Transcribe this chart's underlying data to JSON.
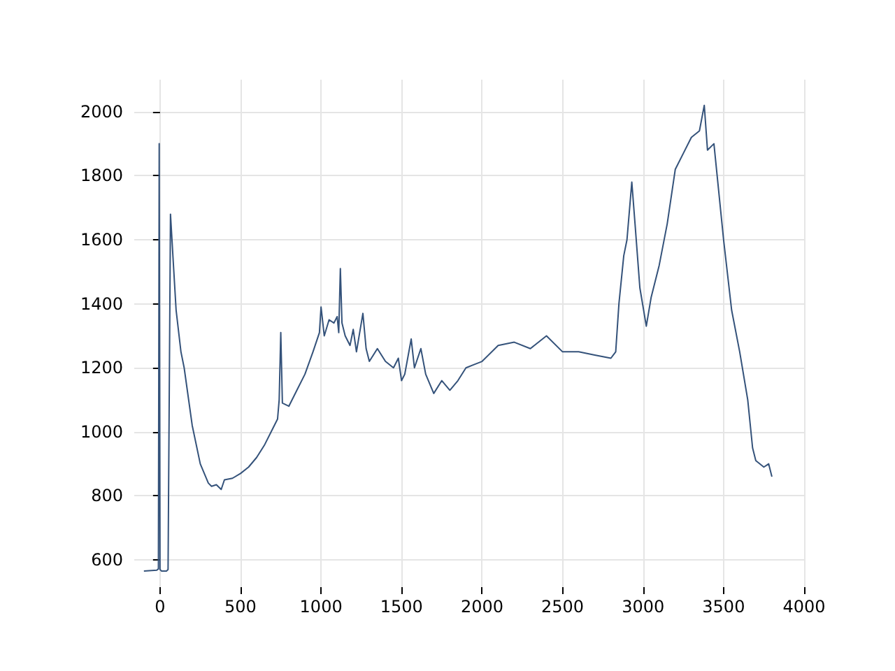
{
  "chart_data": {
    "type": "line",
    "color": "#34527a",
    "grid": true,
    "marker": "none",
    "line_style": "solid",
    "xlim": [
      -160,
      4000
    ],
    "xticks": [
      0,
      500,
      1000,
      1500,
      2000,
      2500,
      3000,
      3500,
      4000
    ],
    "ylim": [
      515,
      2100
    ],
    "yticks": [
      600,
      800,
      1000,
      1200,
      1400,
      1600,
      1800,
      2000
    ],
    "x": [
      -100,
      -20,
      -10,
      -5,
      0,
      10,
      40,
      50,
      65,
      80,
      100,
      130,
      150,
      200,
      250,
      300,
      320,
      350,
      380,
      400,
      450,
      500,
      550,
      600,
      650,
      700,
      730,
      740,
      750,
      760,
      800,
      850,
      900,
      950,
      990,
      1000,
      1020,
      1050,
      1080,
      1100,
      1110,
      1120,
      1130,
      1150,
      1180,
      1200,
      1220,
      1260,
      1280,
      1300,
      1350,
      1400,
      1450,
      1480,
      1500,
      1520,
      1560,
      1580,
      1620,
      1650,
      1700,
      1750,
      1800,
      1850,
      1900,
      1950,
      2000,
      2100,
      2200,
      2300,
      2400,
      2500,
      2600,
      2700,
      2800,
      2830,
      2850,
      2880,
      2900,
      2930,
      2950,
      2980,
      3020,
      3050,
      3100,
      3150,
      3200,
      3250,
      3300,
      3350,
      3380,
      3400,
      3440,
      3460,
      3500,
      3550,
      3600,
      3650,
      3680,
      3700,
      3750,
      3780,
      3800
    ],
    "values": [
      565,
      568,
      572,
      1900,
      570,
      565,
      565,
      570,
      1680,
      1550,
      1380,
      1250,
      1200,
      1020,
      900,
      840,
      830,
      835,
      820,
      850,
      855,
      870,
      890,
      920,
      960,
      1010,
      1040,
      1100,
      1310,
      1090,
      1080,
      1130,
      1180,
      1250,
      1310,
      1390,
      1300,
      1350,
      1340,
      1360,
      1310,
      1510,
      1340,
      1300,
      1270,
      1320,
      1250,
      1370,
      1260,
      1220,
      1260,
      1220,
      1200,
      1230,
      1160,
      1180,
      1290,
      1200,
      1260,
      1180,
      1120,
      1160,
      1130,
      1160,
      1200,
      1210,
      1220,
      1270,
      1280,
      1260,
      1300,
      1250,
      1250,
      1240,
      1230,
      1250,
      1400,
      1550,
      1600,
      1780,
      1650,
      1450,
      1330,
      1420,
      1520,
      1650,
      1820,
      1870,
      1920,
      1940,
      2020,
      1880,
      1900,
      1800,
      1600,
      1380,
      1250,
      1100,
      950,
      910,
      890,
      900,
      860
    ]
  }
}
